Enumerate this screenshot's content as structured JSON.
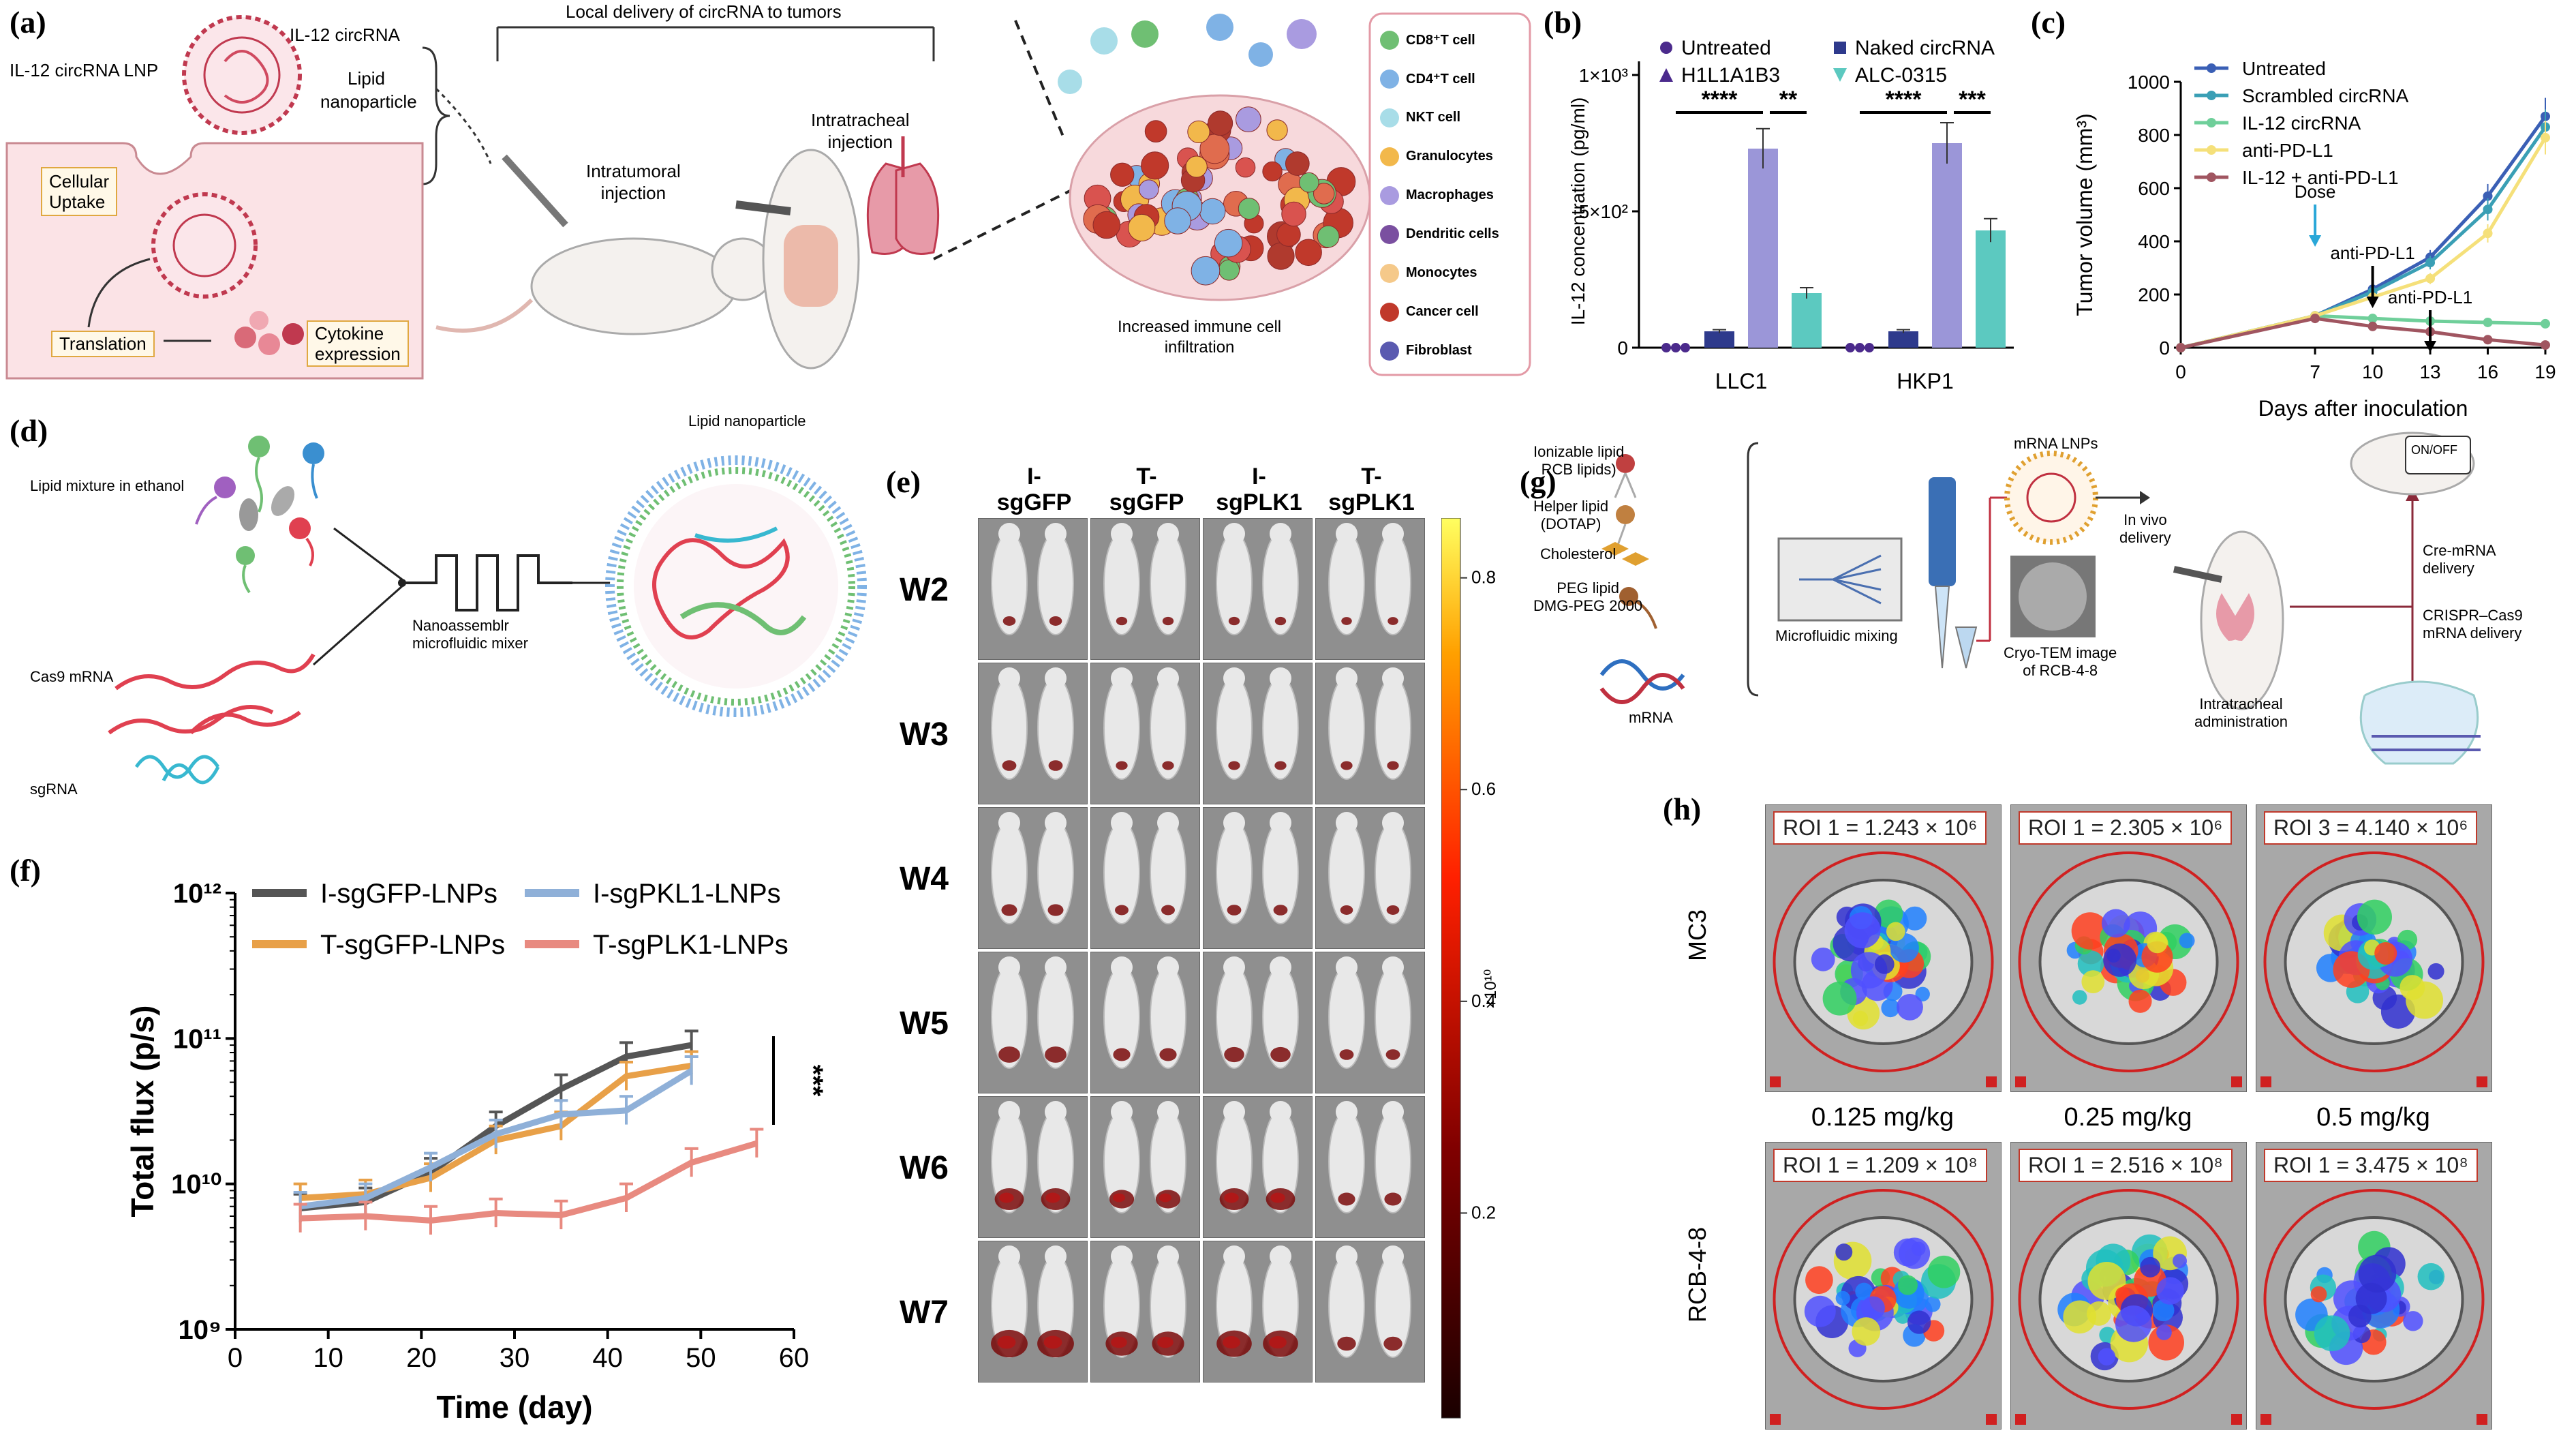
{
  "panels": {
    "a": {
      "label": "(a)",
      "lnp_name": "IL-12 circRNA LNP",
      "circrna_label": "IL-12 circRNA",
      "lipid_label_1": "Lipid",
      "lipid_label_2": "nanoparticle",
      "delivery_title": "Local delivery of circRNA to tumors",
      "uptake_1": "Cellular",
      "uptake_2": "Uptake",
      "translation": "Translation",
      "cytokine_1": "Cytokine",
      "cytokine_2": "expression",
      "intratumoral_1": "Intratumoral",
      "intratumoral_2": "injection",
      "intratracheal_1": "Intratracheal",
      "intratracheal_2": "injection",
      "infiltration_1": "Increased immune cell",
      "infiltration_2": "infiltration",
      "legend": [
        {
          "name": "CD8⁺T cell",
          "color": "#6fbf73"
        },
        {
          "name": "CD4⁺T cell",
          "color": "#7fb2e5"
        },
        {
          "name": "NKT cell",
          "color": "#a8dde8"
        },
        {
          "name": "Granulocytes",
          "color": "#f2b84b"
        },
        {
          "name": "Macrophages",
          "color": "#a99be0"
        },
        {
          "name": "Dendritic cells",
          "color": "#7a4fa0"
        },
        {
          "name": "Monocytes",
          "color": "#f5c98a"
        },
        {
          "name": "Cancer cell",
          "color": "#c0392b"
        },
        {
          "name": "Fibroblast",
          "color": "#5a5ab0"
        }
      ]
    },
    "b": {
      "label": "(b)",
      "chart_data": {
        "type": "bar",
        "categories": [
          "LLC1",
          "HKP1"
        ],
        "series": [
          {
            "name": "Untreated",
            "values": [
              0,
              0
            ],
            "color": "#4b2a8c"
          },
          {
            "name": "Naked circRNA",
            "values": [
              60,
              60
            ],
            "color": "#2e3a8c"
          },
          {
            "name": "H1L1A1B3",
            "values": [
              730,
              750
            ],
            "color": "#9b96d8"
          },
          {
            "name": "ALC-0315",
            "values": [
              200,
              430
            ],
            "color": "#5cc9c0"
          }
        ],
        "ylabel": "IL-12 concentration (pg/ml)",
        "ylim": [
          0,
          1000
        ],
        "yticks": [
          "0",
          "5×10²",
          "1×10³"
        ],
        "sig_llc1": [
          "****",
          "**"
        ],
        "sig_hkp1": [
          "****",
          "***"
        ]
      }
    },
    "c": {
      "label": "(c)",
      "chart_data": {
        "type": "line",
        "x": [
          0,
          7,
          10,
          13,
          16,
          19
        ],
        "series": [
          {
            "name": "Untreated",
            "values": [
              0,
              120,
              220,
              340,
              570,
              870
            ],
            "color": "#3a5fb5"
          },
          {
            "name": "Scrambled circRNA",
            "values": [
              0,
              120,
              210,
              320,
              520,
              830
            ],
            "color": "#3a9fb5"
          },
          {
            "name": "IL-12 circRNA",
            "values": [
              0,
              120,
              110,
              100,
              95,
              90
            ],
            "color": "#6fcf9a"
          },
          {
            "name": "anti-PD-L1",
            "values": [
              0,
              120,
              190,
              260,
              430,
              790
            ],
            "color": "#f5e07a"
          },
          {
            "name": "IL-12 + anti-PD-L1",
            "values": [
              0,
              110,
              80,
              60,
              30,
              10
            ],
            "color": "#a05560"
          }
        ],
        "xlabel": "Days after inoculation",
        "ylabel": "Tumor volume (mm³)",
        "ylim": [
          0,
          1000
        ],
        "xticks": [
          0,
          7,
          10,
          13,
          16,
          19
        ],
        "yticks": [
          0,
          200,
          400,
          600,
          800,
          1000
        ],
        "annotations": [
          "Dose",
          "anti-PD-L1",
          "anti-PD-L1"
        ]
      }
    },
    "d": {
      "label": "(d)",
      "lipid_mix": "Lipid mixture in ethanol",
      "cas9": "Cas9 mRNA",
      "sgrna": "sgRNA",
      "mixer_1": "Nanoassemblr",
      "mixer_2": "microfluidic mixer",
      "lnp": "Lipid nanoparticle"
    },
    "e": {
      "label": "(e)",
      "columns": [
        "I-\nsgGFP",
        "T-\nsgGFP",
        "I-\nsgPLK1",
        "T-\nsgPLK1"
      ],
      "col_top": [
        "I-",
        "T-",
        "I-",
        "T-"
      ],
      "col_bottom": [
        "sgGFP",
        "sgGFP",
        "sgPLK1",
        "sgPLK1"
      ],
      "rows": [
        "W2",
        "W3",
        "W4",
        "W5",
        "W6",
        "W7"
      ],
      "colorbar_ticks": [
        "0.8",
        "0.6",
        "0.4",
        "0.2"
      ],
      "colorbar_unit": "×10¹⁰",
      "signal_levels": [
        [
          0.15,
          0.1,
          0.1,
          0.08
        ],
        [
          0.2,
          0.12,
          0.12,
          0.12
        ],
        [
          0.25,
          0.18,
          0.2,
          0.15
        ],
        [
          0.45,
          0.3,
          0.4,
          0.2
        ],
        [
          0.7,
          0.55,
          0.7,
          0.3
        ],
        [
          0.95,
          0.8,
          0.9,
          0.35
        ]
      ]
    },
    "f": {
      "label": "(f)",
      "chart_data": {
        "type": "line",
        "x": [
          7,
          14,
          21,
          28,
          35,
          42,
          49,
          56
        ],
        "series": [
          {
            "name": "I-sgGFP-LNPs",
            "values": [
              6800000000.0,
              7500000000.0,
              12000000000.0,
              25000000000.0,
              45000000000.0,
              75000000000.0,
              90000000000.0,
              null
            ],
            "color": "#555555"
          },
          {
            "name": "T-sgGFP-LNPs",
            "values": [
              8000000000.0,
              8500000000.0,
              11000000000.0,
              20000000000.0,
              25000000000.0,
              55000000000.0,
              65000000000.0,
              null
            ],
            "color": "#e8a048"
          },
          {
            "name": "I-sgPKL1-LNPs",
            "values": [
              7000000000.0,
              8000000000.0,
              13000000000.0,
              22000000000.0,
              30000000000.0,
              32000000000.0,
              60000000000.0,
              null
            ],
            "color": "#8fb0d8"
          },
          {
            "name": "T-sgPLK1-LNPs",
            "values": [
              5800000000.0,
              6000000000.0,
              5600000000.0,
              6300000000.0,
              6100000000.0,
              8000000000.0,
              14000000000.0,
              19000000000.0
            ],
            "color": "#e88a80"
          }
        ],
        "xlabel": "Time (day)",
        "ylabel": "Total flux (p/s)",
        "yscale": "log",
        "ylim": [
          1000000000.0,
          1000000000000.0
        ],
        "xticks": [
          0,
          10,
          20,
          30,
          40,
          50,
          60
        ],
        "yticks": [
          "10⁹",
          "10¹⁰",
          "10¹¹",
          "10¹²"
        ],
        "significance": "***"
      }
    },
    "g": {
      "label": "(g)",
      "ionizable_1": "Ionizable lipid",
      "ionizable_2": "RCB lipids)",
      "helper_1": "Helper lipid",
      "helper_2": "(DOTAP)",
      "cholesterol": "Cholesterol",
      "peg_1": "PEG lipid",
      "peg_2": "DMG-PEG 2000",
      "mrna": "mRNA",
      "microfluidic": "Microfluidic mixing",
      "mrna_lnps": "mRNA LNPs",
      "cryo_1": "Cryo-TEM image",
      "cryo_2": "of RCB-4-8",
      "invivo_1": "In vivo",
      "invivo_2": "delivery",
      "intratracheal_1": "Intratracheal",
      "intratracheal_2": "administration",
      "onoff": "ON/OFF",
      "cre_1": "Cre-mRNA",
      "cre_2": "delivery",
      "crispr_1": "CRISPR–Cas9",
      "crispr_2": "mRNA delivery"
    },
    "h": {
      "label": "(h)",
      "rows": [
        "MC3",
        "RCB-4-8"
      ],
      "doses": [
        "0.125 mg/kg",
        "0.25 mg/kg",
        "0.5 mg/kg"
      ],
      "roi_top": [
        "ROI 1 = 1.243 × 10⁶",
        "ROI 1 = 2.305 × 10⁶",
        "ROI 3 = 4.140 × 10⁶"
      ],
      "roi_bottom": [
        "ROI 1 = 1.209 × 10⁸",
        "ROI 1 = 2.516 × 10⁸",
        "ROI 1 = 3.475 × 10⁸"
      ]
    }
  }
}
